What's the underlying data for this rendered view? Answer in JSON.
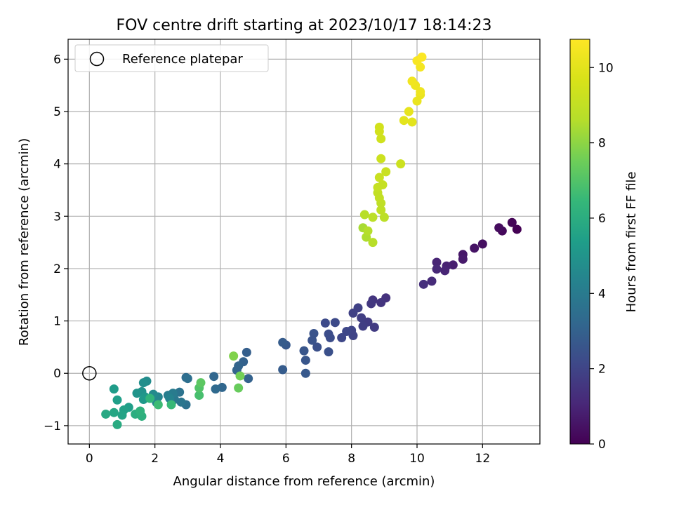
{
  "chart_data": {
    "type": "scatter",
    "title": "FOV centre drift starting at 2023/10/17 18:14:23",
    "xlabel": "Angular distance from reference (arcmin)",
    "ylabel": "Rotation from reference (arcmin)",
    "xlim": [
      -0.65,
      13.75
    ],
    "ylim": [
      -1.35,
      6.38
    ],
    "x_ticks": [
      0,
      2,
      4,
      6,
      8,
      10,
      12
    ],
    "y_ticks": [
      -1,
      0,
      1,
      2,
      3,
      4,
      5,
      6
    ],
    "grid": true,
    "legend": {
      "location": "top-left",
      "entries": [
        "Reference platepar"
      ]
    },
    "reference_point": {
      "x": 0,
      "y": 0
    },
    "colorbar": {
      "label": "Hours from first FF file",
      "colormap": "viridis",
      "range": [
        0,
        10.75
      ],
      "ticks": [
        0,
        2,
        4,
        6,
        8,
        10
      ]
    },
    "points": [
      {
        "x": 13.05,
        "y": 2.75,
        "c": 0.0
      },
      {
        "x": 12.9,
        "y": 2.88,
        "c": 0.1
      },
      {
        "x": 12.6,
        "y": 2.72,
        "c": 0.2
      },
      {
        "x": 12.5,
        "y": 2.78,
        "c": 0.3
      },
      {
        "x": 12.0,
        "y": 2.47,
        "c": 0.4
      },
      {
        "x": 11.75,
        "y": 2.39,
        "c": 0.5
      },
      {
        "x": 11.4,
        "y": 2.27,
        "c": 0.6
      },
      {
        "x": 11.4,
        "y": 2.18,
        "c": 0.7
      },
      {
        "x": 11.1,
        "y": 2.07,
        "c": 0.8
      },
      {
        "x": 10.9,
        "y": 2.05,
        "c": 0.9
      },
      {
        "x": 10.85,
        "y": 1.96,
        "c": 1.0
      },
      {
        "x": 10.6,
        "y": 2.12,
        "c": 1.0
      },
      {
        "x": 10.6,
        "y": 1.99,
        "c": 1.1
      },
      {
        "x": 10.45,
        "y": 1.76,
        "c": 1.2
      },
      {
        "x": 10.2,
        "y": 1.7,
        "c": 1.3
      },
      {
        "x": 9.05,
        "y": 1.44,
        "c": 1.4
      },
      {
        "x": 8.9,
        "y": 1.35,
        "c": 1.5
      },
      {
        "x": 8.65,
        "y": 1.4,
        "c": 1.5
      },
      {
        "x": 8.6,
        "y": 1.33,
        "c": 1.6
      },
      {
        "x": 8.7,
        "y": 0.88,
        "c": 1.7
      },
      {
        "x": 8.5,
        "y": 0.98,
        "c": 1.7
      },
      {
        "x": 8.3,
        "y": 1.06,
        "c": 1.8
      },
      {
        "x": 8.35,
        "y": 0.9,
        "c": 1.8
      },
      {
        "x": 8.2,
        "y": 1.25,
        "c": 1.9
      },
      {
        "x": 8.05,
        "y": 1.15,
        "c": 1.9
      },
      {
        "x": 8.0,
        "y": 0.82,
        "c": 2.0
      },
      {
        "x": 8.05,
        "y": 0.72,
        "c": 2.0
      },
      {
        "x": 7.85,
        "y": 0.8,
        "c": 2.1
      },
      {
        "x": 7.7,
        "y": 0.68,
        "c": 2.1
      },
      {
        "x": 7.5,
        "y": 0.97,
        "c": 2.2
      },
      {
        "x": 7.2,
        "y": 0.96,
        "c": 2.2
      },
      {
        "x": 7.35,
        "y": 0.68,
        "c": 2.3
      },
      {
        "x": 7.3,
        "y": 0.75,
        "c": 2.3
      },
      {
        "x": 7.3,
        "y": 0.41,
        "c": 2.4
      },
      {
        "x": 6.95,
        "y": 0.5,
        "c": 2.4
      },
      {
        "x": 6.85,
        "y": 0.76,
        "c": 2.5
      },
      {
        "x": 6.8,
        "y": 0.63,
        "c": 2.5
      },
      {
        "x": 6.55,
        "y": 0.43,
        "c": 2.6
      },
      {
        "x": 6.6,
        "y": 0.25,
        "c": 2.6
      },
      {
        "x": 6.6,
        "y": 0.0,
        "c": 2.7
      },
      {
        "x": 6.0,
        "y": 0.54,
        "c": 2.7
      },
      {
        "x": 5.9,
        "y": 0.59,
        "c": 2.8
      },
      {
        "x": 5.9,
        "y": 0.07,
        "c": 2.8
      },
      {
        "x": 4.8,
        "y": 0.4,
        "c": 2.9
      },
      {
        "x": 4.85,
        "y": -0.1,
        "c": 3.0
      },
      {
        "x": 4.7,
        "y": 0.22,
        "c": 3.0
      },
      {
        "x": 4.55,
        "y": 0.14,
        "c": 3.1
      },
      {
        "x": 4.5,
        "y": 0.06,
        "c": 3.1
      },
      {
        "x": 4.05,
        "y": -0.27,
        "c": 3.2
      },
      {
        "x": 3.8,
        "y": -0.06,
        "c": 3.2
      },
      {
        "x": 3.85,
        "y": -0.3,
        "c": 3.3
      },
      {
        "x": 2.95,
        "y": -0.08,
        "c": 3.4
      },
      {
        "x": 3.0,
        "y": -0.1,
        "c": 3.5
      },
      {
        "x": 2.95,
        "y": -0.6,
        "c": 3.6
      },
      {
        "x": 2.75,
        "y": -0.36,
        "c": 3.7
      },
      {
        "x": 2.8,
        "y": -0.55,
        "c": 3.8
      },
      {
        "x": 2.6,
        "y": -0.5,
        "c": 3.9
      },
      {
        "x": 2.55,
        "y": -0.38,
        "c": 4.0
      },
      {
        "x": 2.4,
        "y": -0.42,
        "c": 4.1
      },
      {
        "x": 2.45,
        "y": -0.48,
        "c": 4.3
      },
      {
        "x": 2.1,
        "y": -0.45,
        "c": 4.4
      },
      {
        "x": 2.05,
        "y": -0.56,
        "c": 4.5
      },
      {
        "x": 1.95,
        "y": -0.4,
        "c": 4.6
      },
      {
        "x": 1.75,
        "y": -0.15,
        "c": 4.7
      },
      {
        "x": 1.65,
        "y": -0.18,
        "c": 4.8
      },
      {
        "x": 1.6,
        "y": -0.35,
        "c": 4.9
      },
      {
        "x": 1.45,
        "y": -0.38,
        "c": 5.0
      },
      {
        "x": 1.7,
        "y": -0.45,
        "c": 5.1
      },
      {
        "x": 1.65,
        "y": -0.5,
        "c": 5.2
      },
      {
        "x": 0.75,
        "y": -0.3,
        "c": 5.3
      },
      {
        "x": 0.85,
        "y": -0.51,
        "c": 5.4
      },
      {
        "x": 1.2,
        "y": -0.65,
        "c": 5.4
      },
      {
        "x": 1.05,
        "y": -0.7,
        "c": 5.5
      },
      {
        "x": 1.0,
        "y": -0.8,
        "c": 5.6
      },
      {
        "x": 0.75,
        "y": -0.75,
        "c": 5.7
      },
      {
        "x": 0.5,
        "y": -0.78,
        "c": 5.8
      },
      {
        "x": 0.85,
        "y": -0.98,
        "c": 5.9
      },
      {
        "x": 1.4,
        "y": -0.78,
        "c": 6.0
      },
      {
        "x": 1.6,
        "y": -0.82,
        "c": 6.1
      },
      {
        "x": 1.55,
        "y": -0.72,
        "c": 6.2
      },
      {
        "x": 1.85,
        "y": -0.48,
        "c": 6.3
      },
      {
        "x": 2.5,
        "y": -0.6,
        "c": 6.5
      },
      {
        "x": 2.1,
        "y": -0.6,
        "c": 6.6
      },
      {
        "x": 3.35,
        "y": -0.42,
        "c": 6.8
      },
      {
        "x": 3.35,
        "y": -0.28,
        "c": 7.0
      },
      {
        "x": 3.4,
        "y": -0.18,
        "c": 7.2
      },
      {
        "x": 4.55,
        "y": -0.28,
        "c": 7.4
      },
      {
        "x": 4.6,
        "y": -0.05,
        "c": 7.6
      },
      {
        "x": 4.4,
        "y": 0.33,
        "c": 7.8
      },
      {
        "x": 8.35,
        "y": 2.78,
        "c": 8.4
      },
      {
        "x": 8.45,
        "y": 2.6,
        "c": 8.5
      },
      {
        "x": 8.5,
        "y": 2.72,
        "c": 8.6
      },
      {
        "x": 8.65,
        "y": 2.5,
        "c": 8.7
      },
      {
        "x": 8.4,
        "y": 3.03,
        "c": 8.7
      },
      {
        "x": 8.65,
        "y": 2.98,
        "c": 8.8
      },
      {
        "x": 9.0,
        "y": 2.98,
        "c": 8.8
      },
      {
        "x": 8.9,
        "y": 3.12,
        "c": 8.9
      },
      {
        "x": 8.9,
        "y": 3.25,
        "c": 8.9
      },
      {
        "x": 8.85,
        "y": 3.35,
        "c": 9.0
      },
      {
        "x": 8.8,
        "y": 3.45,
        "c": 9.0
      },
      {
        "x": 8.8,
        "y": 3.55,
        "c": 9.1
      },
      {
        "x": 8.95,
        "y": 3.6,
        "c": 9.1
      },
      {
        "x": 8.85,
        "y": 3.74,
        "c": 9.2
      },
      {
        "x": 9.05,
        "y": 3.85,
        "c": 9.2
      },
      {
        "x": 8.9,
        "y": 4.1,
        "c": 9.3
      },
      {
        "x": 9.5,
        "y": 4.0,
        "c": 9.3
      },
      {
        "x": 8.9,
        "y": 4.48,
        "c": 9.4
      },
      {
        "x": 8.85,
        "y": 4.62,
        "c": 9.5
      },
      {
        "x": 8.85,
        "y": 4.7,
        "c": 9.5
      },
      {
        "x": 9.6,
        "y": 4.83,
        "c": 10.0
      },
      {
        "x": 9.85,
        "y": 4.8,
        "c": 10.0
      },
      {
        "x": 9.75,
        "y": 5.0,
        "c": 10.1
      },
      {
        "x": 10.0,
        "y": 5.2,
        "c": 10.2
      },
      {
        "x": 10.1,
        "y": 5.32,
        "c": 10.2
      },
      {
        "x": 10.1,
        "y": 5.38,
        "c": 10.3
      },
      {
        "x": 9.95,
        "y": 5.5,
        "c": 10.3
      },
      {
        "x": 9.85,
        "y": 5.58,
        "c": 10.4
      },
      {
        "x": 10.1,
        "y": 5.85,
        "c": 10.5
      },
      {
        "x": 10.0,
        "y": 5.97,
        "c": 10.6
      },
      {
        "x": 10.15,
        "y": 6.04,
        "c": 10.7
      }
    ]
  }
}
